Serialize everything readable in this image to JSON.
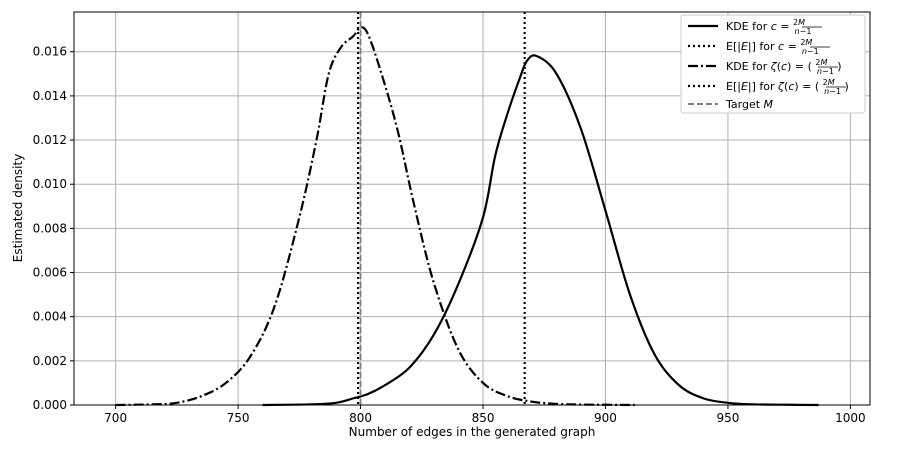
{
  "chart_data": {
    "type": "line",
    "xlabel": "Number of edges in the generated graph",
    "ylabel": "Estimated density",
    "xlim": [
      683,
      1008
    ],
    "ylim": [
      0,
      0.0178
    ],
    "xticks": [
      700,
      750,
      800,
      850,
      900,
      950,
      1000
    ],
    "yticks": [
      0.0,
      0.002,
      0.004,
      0.006,
      0.008,
      0.01,
      0.012,
      0.014,
      0.016
    ],
    "ytick_labels": [
      "0.000",
      "0.002",
      "0.004",
      "0.006",
      "0.008",
      "0.010",
      "0.012",
      "0.014",
      "0.016"
    ],
    "grid": true,
    "legend_position": "top-right",
    "series": [
      {
        "name": "KDE for c = 2M/(n−1)",
        "style": "solid",
        "color": "#000000",
        "x": [
          760,
          780,
          790,
          797,
          803,
          810,
          820,
          830,
          840,
          850,
          855,
          860,
          865,
          868,
          872,
          880,
          890,
          900,
          910,
          920,
          930,
          940,
          950,
          960,
          975,
          987
        ],
        "y": [
          0,
          3e-05,
          0.0001,
          0.0003,
          0.0005,
          0.0009,
          0.0017,
          0.0032,
          0.0055,
          0.0085,
          0.0113,
          0.0132,
          0.0148,
          0.0156,
          0.0158,
          0.015,
          0.0125,
          0.0088,
          0.005,
          0.0023,
          0.0009,
          0.0003,
          0.0001,
          3e-05,
          1e-05,
          0
        ]
      },
      {
        "name": "KDE for ζ(c) = (2M/(n−1))",
        "style": "dashdot",
        "color": "#000000",
        "x": [
          700,
          715,
          725,
          735,
          745,
          755,
          765,
          775,
          782,
          787,
          792,
          797,
          800,
          803,
          808,
          815,
          822,
          830,
          840,
          850,
          860,
          870,
          880,
          890,
          900,
          912
        ],
        "y": [
          0,
          3e-05,
          0.0001,
          0.0004,
          0.001,
          0.0022,
          0.0045,
          0.0085,
          0.012,
          0.015,
          0.0162,
          0.0167,
          0.0171,
          0.0168,
          0.0152,
          0.0125,
          0.009,
          0.0055,
          0.0025,
          0.001,
          0.0004,
          0.00015,
          5e-05,
          2e-05,
          1e-05,
          0
        ]
      }
    ],
    "vlines": [
      {
        "name": "E[|E|] for c = 2M/(n−1)",
        "x": 867,
        "style": "dotted",
        "color": "#000000"
      },
      {
        "name": "E[|E|] for ζ(c) = (2M/(n−1))",
        "x": 799,
        "style": "dotted",
        "color": "#000000"
      },
      {
        "name": "Target M",
        "x": 800,
        "style": "dashed",
        "color": "#808080"
      }
    ]
  }
}
